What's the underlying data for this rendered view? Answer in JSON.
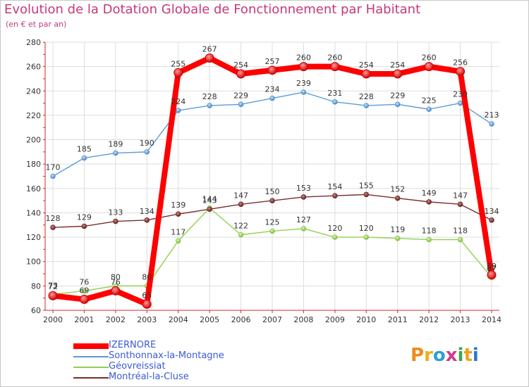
{
  "title": "Evolution de la Dotation Globale de Fonctionnement par Habitant",
  "subtitle": "(en € et par an)",
  "logo": {
    "text": "Proxiti",
    "colors": [
      "#f08a1c",
      "#e8b020",
      "#2aa0d8",
      "#d23a8a",
      "#3aa84a",
      "#f0a020",
      "#2a78d0"
    ]
  },
  "chart_data": {
    "type": "line",
    "title": "Evolution de la Dotation Globale de Fonctionnement par Habitant",
    "subtitle": "(en € et par an)",
    "xlabel": "",
    "ylabel": "",
    "ylim": [
      60,
      280
    ],
    "yticks": [
      60,
      80,
      100,
      120,
      140,
      160,
      180,
      200,
      220,
      240,
      260,
      280
    ],
    "grid": true,
    "legend_position": "bottom-left",
    "x": [
      "2000",
      "2001",
      "2002",
      "2003",
      "2004",
      "2005",
      "2006",
      "2007",
      "2008",
      "2009",
      "2010",
      "2011",
      "2012",
      "2013",
      "2014"
    ],
    "series": [
      {
        "name": "Sonthonnax-la-Montagne",
        "color": "#5b9bd5",
        "values": [
          170,
          185,
          189,
          190,
          224,
          228,
          229,
          234,
          239,
          231,
          228,
          229,
          225,
          230,
          213
        ]
      },
      {
        "name": "Géovreissiat",
        "color": "#92d050",
        "values": [
          73,
          76,
          80,
          80,
          117,
          144,
          122,
          125,
          127,
          120,
          120,
          119,
          118,
          118,
          87
        ]
      },
      {
        "name": "Montréal-la-Cluse",
        "color": "#7b2c2c",
        "values": [
          128,
          129,
          133,
          134,
          139,
          143,
          147,
          150,
          153,
          154,
          155,
          152,
          149,
          147,
          134
        ]
      },
      {
        "name": "IZERNORE",
        "color": "#ff0000",
        "values": [
          72,
          69,
          76,
          65,
          255,
          267,
          254,
          257,
          260,
          260,
          254,
          254,
          260,
          256,
          89
        ]
      }
    ]
  }
}
